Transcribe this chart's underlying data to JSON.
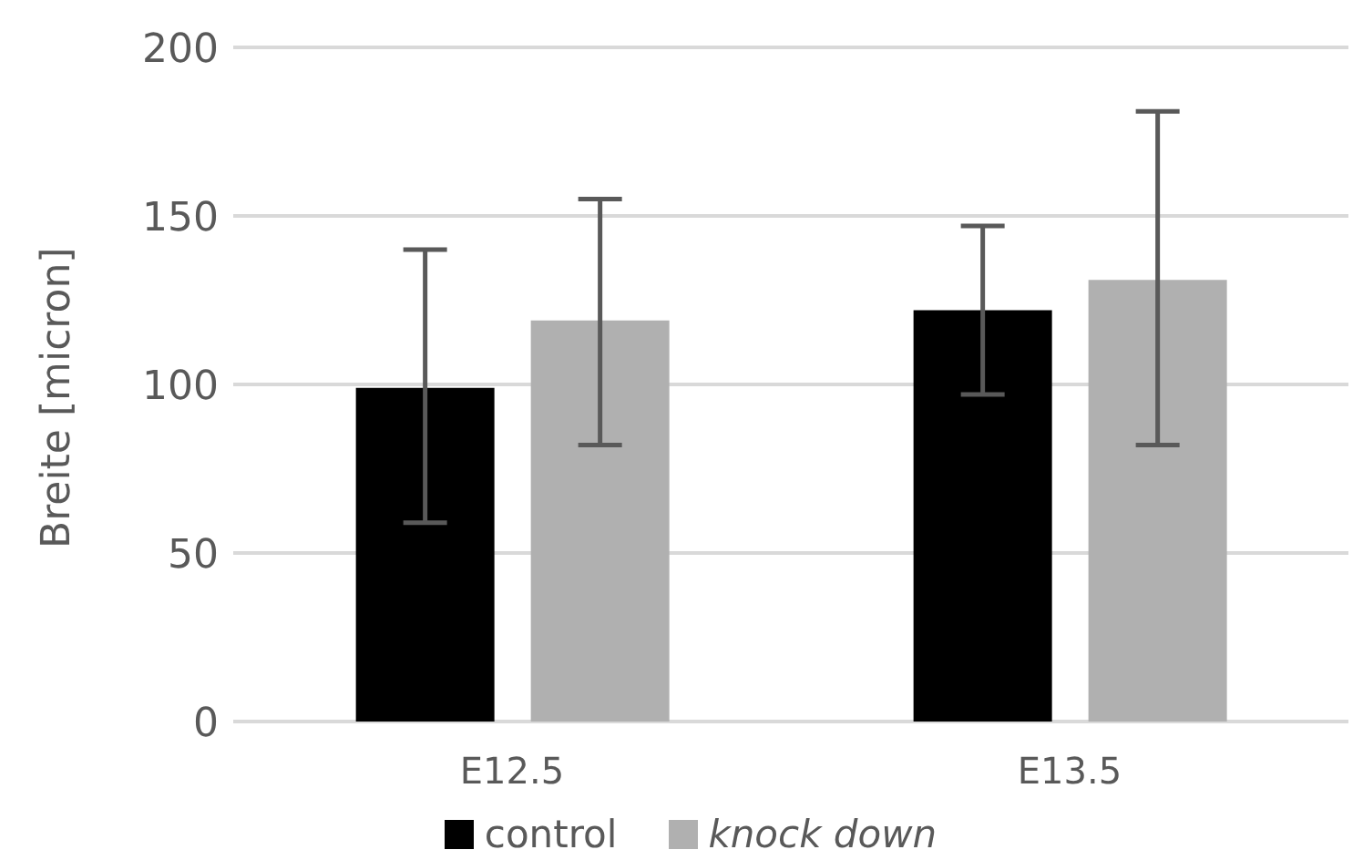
{
  "chart_data": {
    "type": "bar",
    "ylabel": "Breite [micron]",
    "categories": [
      "E12.5",
      "E13.5"
    ],
    "series": [
      {
        "name": "control",
        "color": "#000000",
        "values": [
          99,
          122
        ],
        "errors": [
          [
            59,
            140
          ],
          [
            97,
            147
          ]
        ]
      },
      {
        "name": "knock down",
        "color": "#b0b0b0",
        "values": [
          119,
          131
        ],
        "errors": [
          [
            82,
            155
          ],
          [
            82,
            181
          ]
        ]
      }
    ],
    "ylim": [
      0,
      200
    ],
    "yticks": [
      0,
      50,
      100,
      150,
      200
    ],
    "grid": "y",
    "legend": "bottom"
  }
}
